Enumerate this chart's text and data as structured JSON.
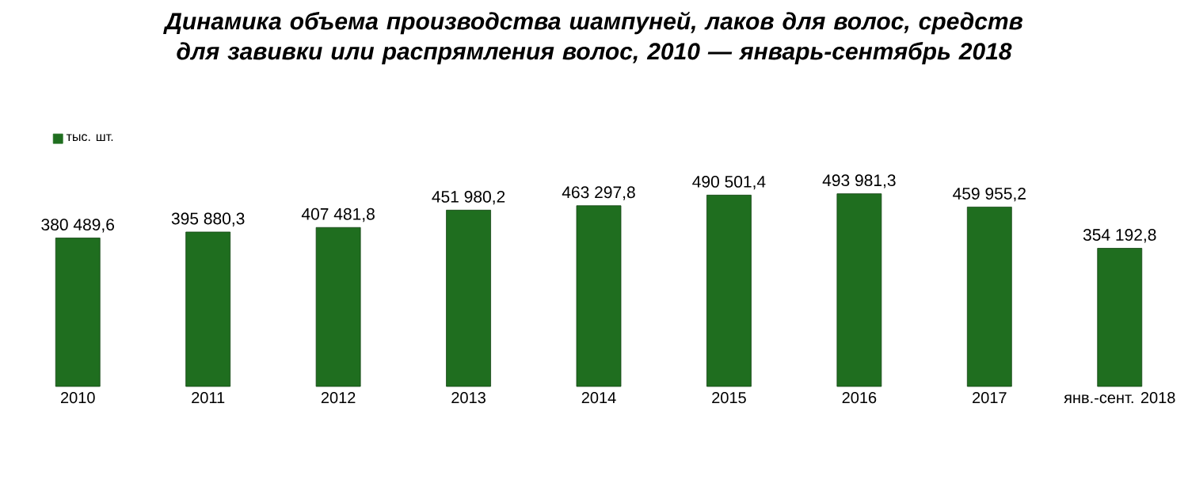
{
  "chart_data": {
    "type": "bar",
    "title": "Динамика объема производства шампуней, лаков для волос, средств для завивки или распрямления волос, 2010 — январь-сентябрь 2018",
    "categories": [
      "2010",
      "2011",
      "2012",
      "2013",
      "2014",
      "2015",
      "2016",
      "2017",
      "янв.-сент. 2018"
    ],
    "series": [
      {
        "name": "тыс. шт.",
        "color": "#1f6e1f",
        "values": [
          380489.6,
          395880.3,
          407481.8,
          451980.2,
          463297.8,
          490501.4,
          493981.3,
          459955.2,
          354192.8
        ],
        "value_labels": [
          "380 489,6",
          "395 880,3",
          "407 481,8",
          "451 980,2",
          "463 297,8",
          "490 501,4",
          "493 981,3",
          "459 955,2",
          "354 192,8"
        ]
      }
    ],
    "legend": "top left"
  }
}
